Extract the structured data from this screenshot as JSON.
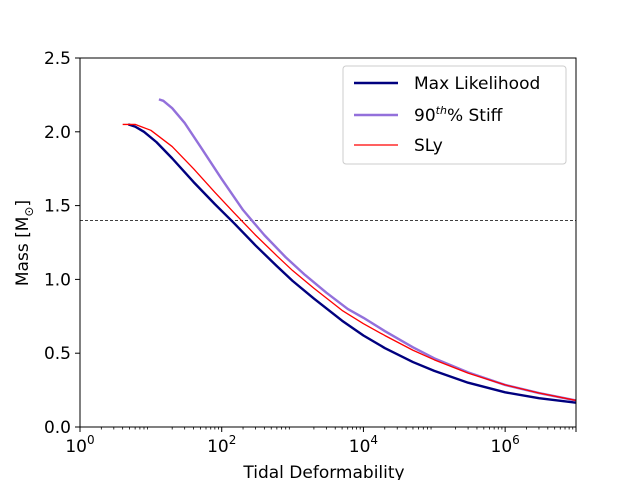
{
  "chart_data": {
    "type": "line",
    "title": "",
    "xlabel": "Tidal Deformability",
    "ylabel": "Mass [M",
    "ylabel_sub": "⊙",
    "ylabel_close": "]",
    "xscale": "log",
    "xlim": [
      1,
      10000000
    ],
    "ylim": [
      0,
      2.5
    ],
    "grid": false,
    "legend_position": "top-right",
    "x_ticks": [
      {
        "base": "10",
        "exp": "0",
        "value": 1
      },
      {
        "base": "10",
        "exp": "2",
        "value": 100
      },
      {
        "base": "10",
        "exp": "4",
        "value": 10000
      },
      {
        "base": "10",
        "exp": "6",
        "value": 1000000
      }
    ],
    "y_ticks": [
      "0.0",
      "0.5",
      "1.0",
      "1.5",
      "2.0",
      "2.5"
    ],
    "reference_line": {
      "y": 1.4,
      "style": "dashed",
      "color": "#000000"
    },
    "series": [
      {
        "name": "Max Likelihood",
        "color": "#00007f",
        "width": 2.4,
        "points": [
          [
            4.8,
            2.05
          ],
          [
            6,
            2.035
          ],
          [
            8,
            2.0
          ],
          [
            12,
            1.93
          ],
          [
            20,
            1.82
          ],
          [
            40,
            1.66
          ],
          [
            80,
            1.51
          ],
          [
            150,
            1.38
          ],
          [
            300,
            1.23
          ],
          [
            600,
            1.09
          ],
          [
            1000,
            0.99
          ],
          [
            2000,
            0.87
          ],
          [
            5000,
            0.72
          ],
          [
            10000,
            0.62
          ],
          [
            20000,
            0.535
          ],
          [
            50000,
            0.44
          ],
          [
            100000,
            0.38
          ],
          [
            300000,
            0.3
          ],
          [
            1000000,
            0.235
          ],
          [
            3000000,
            0.195
          ],
          [
            10000000,
            0.165
          ]
        ]
      },
      {
        "name": "90",
        "name_sup": "th",
        "name_rest": "% Stiff",
        "color": "#9370db",
        "width": 2.4,
        "points": [
          [
            13,
            2.22
          ],
          [
            15,
            2.21
          ],
          [
            20,
            2.16
          ],
          [
            30,
            2.06
          ],
          [
            50,
            1.9
          ],
          [
            100,
            1.68
          ],
          [
            200,
            1.47
          ],
          [
            400,
            1.3
          ],
          [
            800,
            1.15
          ],
          [
            1500,
            1.03
          ],
          [
            3000,
            0.91
          ],
          [
            6000,
            0.8
          ],
          [
            10000,
            0.74
          ],
          [
            20000,
            0.65
          ],
          [
            50000,
            0.54
          ],
          [
            100000,
            0.465
          ],
          [
            300000,
            0.37
          ],
          [
            1000000,
            0.285
          ],
          [
            3000000,
            0.23
          ],
          [
            10000000,
            0.18
          ]
        ]
      },
      {
        "name": "SLy",
        "color": "#ff0000",
        "width": 1.3,
        "points": [
          [
            4,
            2.05
          ],
          [
            6,
            2.05
          ],
          [
            10,
            2.01
          ],
          [
            20,
            1.9
          ],
          [
            40,
            1.75
          ],
          [
            80,
            1.59
          ],
          [
            150,
            1.45
          ],
          [
            300,
            1.3
          ],
          [
            600,
            1.16
          ],
          [
            1000,
            1.06
          ],
          [
            2000,
            0.94
          ],
          [
            5000,
            0.79
          ],
          [
            10000,
            0.7
          ],
          [
            20000,
            0.62
          ],
          [
            50000,
            0.52
          ],
          [
            100000,
            0.455
          ],
          [
            300000,
            0.365
          ],
          [
            1000000,
            0.285
          ],
          [
            3000000,
            0.23
          ],
          [
            10000000,
            0.18
          ]
        ]
      }
    ]
  }
}
